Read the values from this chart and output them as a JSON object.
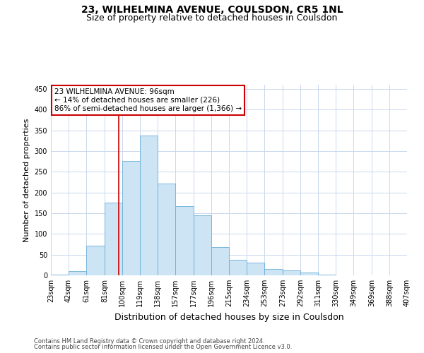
{
  "title": "23, WILHELMINA AVENUE, COULSDON, CR5 1NL",
  "subtitle": "Size of property relative to detached houses in Coulsdon",
  "xlabel": "Distribution of detached houses by size in Coulsdon",
  "ylabel": "Number of detached properties",
  "footer_line1": "Contains HM Land Registry data © Crown copyright and database right 2024.",
  "footer_line2": "Contains public sector information licensed under the Open Government Licence v3.0.",
  "bins": [
    23,
    42,
    61,
    81,
    100,
    119,
    138,
    157,
    177,
    196,
    215,
    234,
    253,
    273,
    292,
    311,
    330,
    349,
    369,
    388,
    407
  ],
  "bar_heights": [
    2,
    11,
    72,
    175,
    276,
    338,
    221,
    167,
    145,
    68,
    37,
    30,
    16,
    12,
    6,
    1,
    0,
    0,
    0,
    0
  ],
  "bar_color": "#cde4f5",
  "bar_edge_color": "#6aaed6",
  "vline_x": 96,
  "vline_color": "#cc0000",
  "annotation_text": "23 WILHELMINA AVENUE: 96sqm\n← 14% of detached houses are smaller (226)\n86% of semi-detached houses are larger (1,366) →",
  "annotation_box_color": "#ffffff",
  "annotation_box_edge": "#cc0000",
  "ylim": [
    0,
    460
  ],
  "yticks": [
    0,
    50,
    100,
    150,
    200,
    250,
    300,
    350,
    400,
    450
  ],
  "bg_color": "#ffffff",
  "grid_color": "#c8d8ec",
  "title_fontsize": 10,
  "subtitle_fontsize": 9,
  "xlabel_fontsize": 9,
  "ylabel_fontsize": 8,
  "tick_fontsize": 7,
  "footer_fontsize": 6,
  "annot_fontsize": 7.5
}
